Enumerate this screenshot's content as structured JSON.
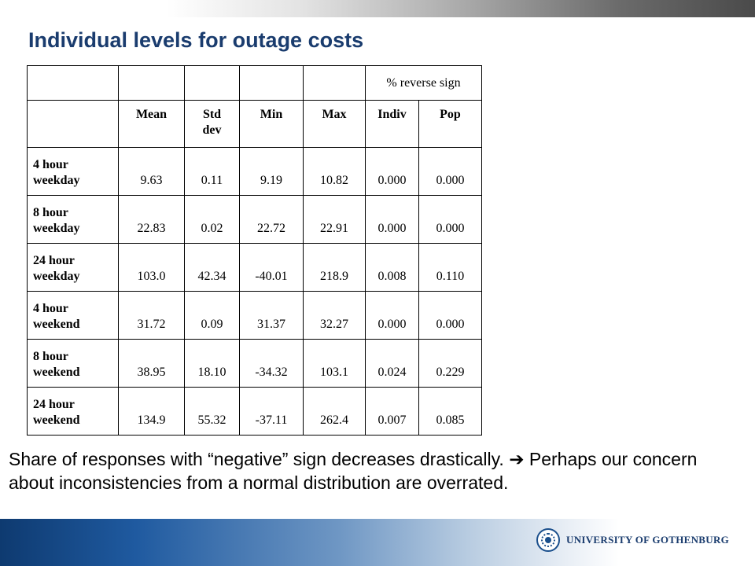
{
  "title": "Individual levels for outage costs",
  "table": {
    "group_header": "% reverse sign",
    "columns": [
      "",
      "Mean",
      "Std dev",
      "Min",
      "Max",
      "Indiv",
      "Pop"
    ],
    "rows": [
      {
        "label": "4 hour weekday",
        "values": [
          "9.63",
          "0.11",
          "9.19",
          "10.82",
          "0.000",
          "0.000"
        ]
      },
      {
        "label": "8 hour weekday",
        "values": [
          "22.83",
          "0.02",
          "22.72",
          "22.91",
          "0.000",
          "0.000"
        ]
      },
      {
        "label": "24 hour weekday",
        "values": [
          "103.0",
          "42.34",
          "-40.01",
          "218.9",
          "0.008",
          "0.110"
        ]
      },
      {
        "label": "4 hour weekend",
        "values": [
          "31.72",
          "0.09",
          "31.37",
          "32.27",
          "0.000",
          "0.000"
        ]
      },
      {
        "label": "8 hour weekend",
        "values": [
          "38.95",
          "18.10",
          "-34.32",
          "103.1",
          "0.024",
          "0.229"
        ]
      },
      {
        "label": "24 hour weekend",
        "values": [
          "134.9",
          "55.32",
          "-37.11",
          "262.4",
          "0.007",
          "0.085"
        ]
      }
    ]
  },
  "note": {
    "part1": "Share of responses with “negative” sign decreases drastically.",
    "arrow": "➔",
    "part2": "Perhaps our concern about inconsistencies from a normal distribution are overrated."
  },
  "footer": {
    "logo_text": "UNIVERSITY OF GOTHENBURG",
    "seal_icon": "university-seal-icon"
  },
  "colors": {
    "title": "#1a3c6e",
    "footer_dark": "#0e3a70",
    "footer_light": "#b8cce1"
  }
}
